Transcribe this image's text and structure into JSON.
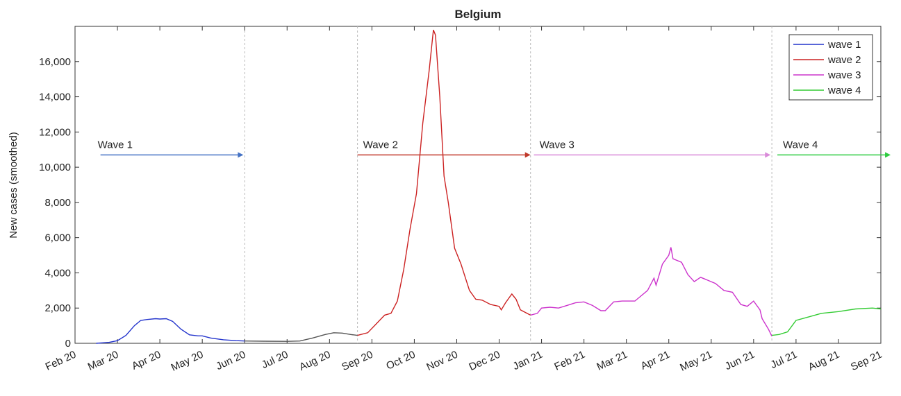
{
  "chart_data": {
    "type": "line",
    "title": "Belgium",
    "ylabel": "New cases (smoothed)",
    "xlim": [
      2,
      21
    ],
    "ylim": [
      0,
      18000
    ],
    "xticks": [
      {
        "value": 2,
        "label": "Feb 20"
      },
      {
        "value": 3,
        "label": "Mar 20"
      },
      {
        "value": 4,
        "label": "Apr 20"
      },
      {
        "value": 5,
        "label": "May 20"
      },
      {
        "value": 6,
        "label": "Jun 20"
      },
      {
        "value": 7,
        "label": "Jul 20"
      },
      {
        "value": 8,
        "label": "Aug 20"
      },
      {
        "value": 9,
        "label": "Sep 20"
      },
      {
        "value": 10,
        "label": "Oct 20"
      },
      {
        "value": 11,
        "label": "Nov 20"
      },
      {
        "value": 12,
        "label": "Dec 20"
      },
      {
        "value": 13,
        "label": "Jan 21"
      },
      {
        "value": 14,
        "label": "Feb 21"
      },
      {
        "value": 15,
        "label": "Mar 21"
      },
      {
        "value": 16,
        "label": "Apr 21"
      },
      {
        "value": 17,
        "label": "May 21"
      },
      {
        "value": 18,
        "label": "Jun 21"
      },
      {
        "value": 19,
        "label": "Jul 21"
      },
      {
        "value": 20,
        "label": "Aug 21"
      },
      {
        "value": 21,
        "label": "Sep 21"
      }
    ],
    "yticks": [
      0,
      {
        "value": 2000,
        "label": "2,000"
      },
      {
        "value": 4000,
        "label": "4,000"
      },
      {
        "value": 6000,
        "label": "6,000"
      },
      {
        "value": 8000,
        "label": "8,000"
      },
      {
        "value": 10000,
        "label": "10,000"
      },
      {
        "value": 12000,
        "label": "12,000"
      },
      {
        "value": 14000,
        "label": "14,000"
      },
      {
        "value": 16000,
        "label": "16,000"
      }
    ],
    "legend": "upper right",
    "vlines": [
      6.0,
      8.66,
      12.74,
      18.43
    ],
    "series": [
      {
        "name": "wave 1",
        "color": "#2233cc",
        "x": [
          2.5,
          2.8,
          3.0,
          3.2,
          3.4,
          3.55,
          3.7,
          3.9,
          4.0,
          4.15,
          4.3,
          4.5,
          4.7,
          4.9,
          5.0,
          5.2,
          5.5,
          5.8,
          6.0
        ],
        "values": [
          0,
          50,
          150,
          450,
          1000,
          1300,
          1350,
          1400,
          1380,
          1400,
          1250,
          800,
          480,
          420,
          420,
          300,
          200,
          150,
          130
        ]
      },
      {
        "color": "#555555",
        "x": [
          6.0,
          6.5,
          7.0,
          7.3,
          7.6,
          7.9,
          8.1,
          8.3,
          8.5,
          8.66
        ],
        "values": [
          130,
          120,
          110,
          130,
          300,
          500,
          600,
          580,
          500,
          450
        ]
      },
      {
        "name": "wave 2",
        "color": "#cc2222",
        "x": [
          8.66,
          8.9,
          9.1,
          9.3,
          9.45,
          9.6,
          9.75,
          9.9,
          10.05,
          10.2,
          10.35,
          10.45,
          10.5,
          10.6,
          10.7,
          10.8,
          10.95,
          11.1,
          11.3,
          11.45,
          11.6,
          11.8,
          12.0,
          12.05,
          12.15,
          12.3,
          12.4,
          12.5,
          12.74
        ],
        "values": [
          450,
          600,
          1100,
          1600,
          1700,
          2400,
          4200,
          6500,
          8500,
          12500,
          15500,
          17800,
          17500,
          14000,
          9500,
          8000,
          5400,
          4500,
          3000,
          2500,
          2450,
          2200,
          2100,
          1900,
          2300,
          2800,
          2500,
          1900,
          1600
        ]
      },
      {
        "name": "wave 3",
        "color": "#cc33cc",
        "x": [
          12.74,
          12.9,
          13.0,
          13.2,
          13.4,
          13.6,
          13.8,
          14.0,
          14.2,
          14.4,
          14.5,
          14.7,
          14.9,
          15.2,
          15.5,
          15.65,
          15.7,
          15.85,
          16.0,
          16.05,
          16.1,
          16.3,
          16.45,
          16.6,
          16.75,
          16.9,
          17.1,
          17.3,
          17.5,
          17.7,
          17.85,
          18.0,
          18.15,
          18.2,
          18.35,
          18.43
        ],
        "values": [
          1600,
          1700,
          2000,
          2050,
          2000,
          2150,
          2300,
          2350,
          2150,
          1850,
          1850,
          2350,
          2400,
          2400,
          3000,
          3700,
          3300,
          4500,
          5000,
          5450,
          4800,
          4600,
          3900,
          3500,
          3750,
          3600,
          3400,
          3000,
          2900,
          2200,
          2100,
          2400,
          1900,
          1400,
          800,
          400
        ]
      },
      {
        "name": "wave 4",
        "color": "#33cc33",
        "x": [
          18.43,
          18.6,
          18.8,
          19.0,
          19.3,
          19.6,
          20.0,
          20.4,
          20.8,
          21.0
        ],
        "values": [
          450,
          500,
          650,
          1300,
          1500,
          1700,
          1800,
          1950,
          2000,
          1950
        ]
      }
    ],
    "annotations": [
      {
        "text": "Wave 1",
        "x": [
          2.6,
          5.97
        ],
        "y": 10700,
        "color": "#4472c4"
      },
      {
        "text": "Wave 2",
        "x": [
          8.66,
          12.74
        ],
        "y": 10700,
        "color": "#c0392b"
      },
      {
        "text": "Wave 3",
        "x": [
          12.82,
          18.4
        ],
        "y": 10700,
        "color": "#d98ad9"
      },
      {
        "text": "Wave 4",
        "x": [
          18.56,
          21.23
        ],
        "y": 10700,
        "color": "#2ecc40"
      }
    ]
  }
}
